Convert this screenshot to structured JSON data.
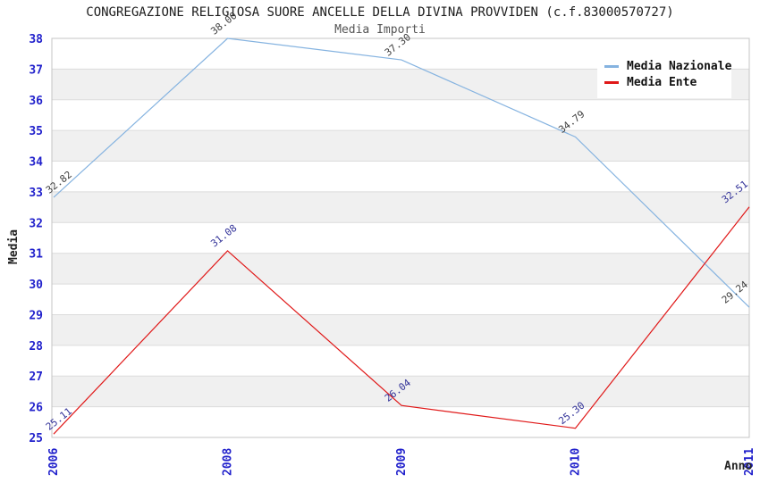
{
  "header": {
    "title": "CONGREGAZIONE RELIGIOSA SUORE ANCELLE DELLA DIVINA PROVVIDEN (c.f.83000570727)",
    "subtitle": "Media Importi"
  },
  "chart_data": {
    "type": "line",
    "title": "CONGREGAZIONE RELIGIOSA SUORE ANCELLE DELLA DIVINA PROVVIDEN (c.f.83000570727)",
    "subtitle": "Media Importi",
    "categories": [
      "2006",
      "2008",
      "2009",
      "2010",
      "2011"
    ],
    "series": [
      {
        "name": "Media Nazionale",
        "values": [
          32.82,
          38.0,
          37.3,
          34.79,
          29.24
        ],
        "color": "#85b3e0",
        "label_color": "#3d3d3d"
      },
      {
        "name": "Media Ente",
        "values": [
          25.11,
          31.08,
          26.04,
          25.3,
          32.51
        ],
        "color": "#e01818",
        "label_color": "#333399"
      }
    ],
    "xlabel": "Anno",
    "ylabel": "Media",
    "ylim": [
      25,
      38
    ],
    "ytick_step": 1,
    "value_label_decimals": 2,
    "legend_position": "top-right",
    "grid": "horizontal-bands",
    "colors": {
      "tick_label": "#2222cc",
      "band": "#f0f0f0",
      "grid_line": "#dcdcdc",
      "plot_border": "#c4c4c4",
      "plot_background": "#ffffff"
    }
  }
}
